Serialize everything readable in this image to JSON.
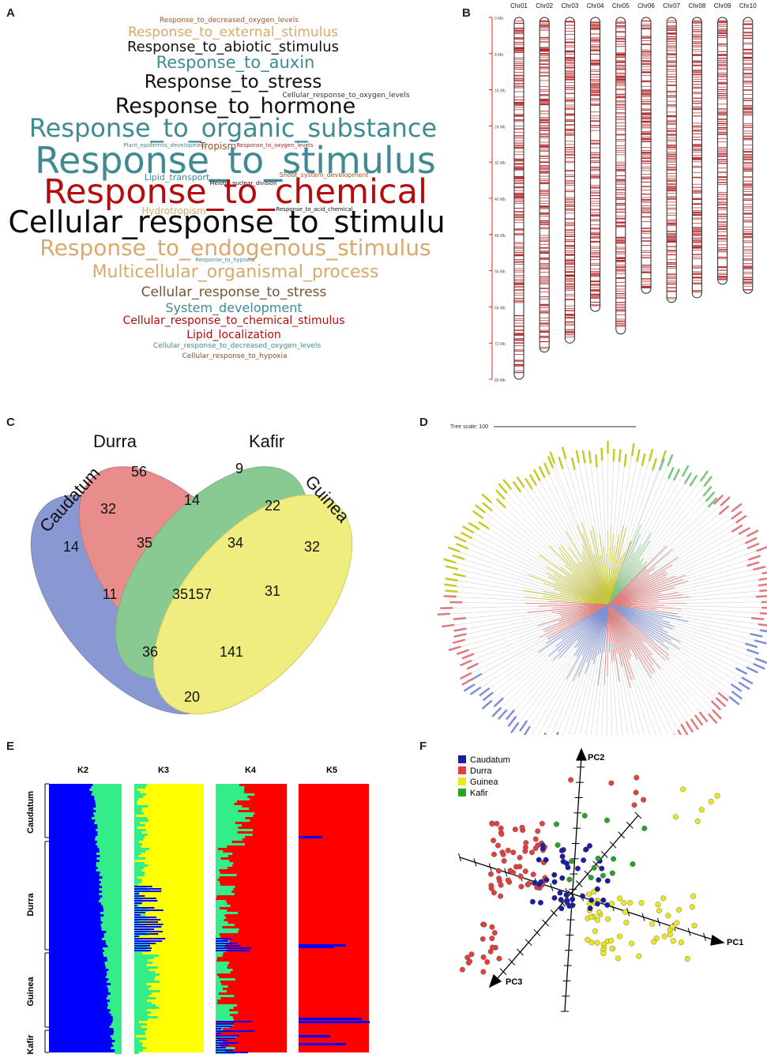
{
  "panels": {
    "a": "A",
    "b": "B",
    "c": "C",
    "d": "D",
    "e": "E",
    "f": "F"
  },
  "wordcloud": [
    {
      "text": "Response_to_decreased_oxygen_levels",
      "color": "#a0522d"
    },
    {
      "text": "Response_to_external_stimulus",
      "color": "#d9a86c"
    },
    {
      "text": "Response_to_abiotic_stimulus",
      "color": "#111111"
    },
    {
      "text": "Response_to_auxin",
      "color": "#3f8a93"
    },
    {
      "text": "Response_to_stress",
      "color": "#111111"
    },
    {
      "text": "Cellular_response_to_oxygen_levels",
      "color": "#333333"
    },
    {
      "text": "Response_to_hormone",
      "color": "#111111"
    },
    {
      "text": "Response_to_organic_substance",
      "color": "#3f8a93"
    },
    {
      "text": "Plant_epidermis_development",
      "color": "#3f8a93"
    },
    {
      "text": "Tropism",
      "color": "#a0522d"
    },
    {
      "text": "Response_to_oxygen_levels",
      "color": "#b22222"
    },
    {
      "text": "Response_to_stimulus",
      "color": "#3f8a93"
    },
    {
      "text": "Lipid_transport",
      "color": "#3f8a93"
    },
    {
      "text": "Shoot_system_development",
      "color": "#a0522d"
    },
    {
      "text": "Meiotic_nuclear_division",
      "color": "#111111"
    },
    {
      "text": "Response_to_chemical",
      "color": "#b30d0d"
    },
    {
      "text": "Cellular_response_to_stimulu",
      "color": "#0a0a0a"
    },
    {
      "text": "Hydrotropism",
      "color": "#d9a86c"
    },
    {
      "text": "Response_to_acid_chemical",
      "color": "#111111"
    },
    {
      "text": "Response_to_endogenous_stimulus",
      "color": "#d9a86c"
    },
    {
      "text": "Response_to_hypoxia",
      "color": "#3f8a93"
    },
    {
      "text": "Multicellular_organismal_process",
      "color": "#d9a86c"
    },
    {
      "text": "Cellular_response_to_stress",
      "color": "#7a5230"
    },
    {
      "text": "System_development",
      "color": "#3f8a93"
    },
    {
      "text": "Cellular_response_to_chemical_stimulus",
      "color": "#b30d0d"
    },
    {
      "text": "Lipid_localization",
      "color": "#b30d0d"
    },
    {
      "text": "Cellular_response_to_decreased_oxygen_levels",
      "color": "#3f8a93"
    },
    {
      "text": "Cellular_response_to_hypoxia",
      "color": "#7a5230"
    }
  ],
  "chromosomes": {
    "names": [
      "Chr01",
      "Chr02",
      "Chr03",
      "Chr04",
      "Chr05",
      "Chr06",
      "Chr07",
      "Chr08",
      "Chr09",
      "Chr10"
    ],
    "lengths_mb": [
      80,
      74,
      72,
      65,
      70,
      61,
      63,
      62,
      59,
      61
    ],
    "axis_ticks": [
      "0 Mb",
      "8 Mb",
      "16 Mb",
      "24 Mb",
      "32 Mb",
      "40 Mb",
      "48 Mb",
      "56 Mb",
      "64 Mb",
      "72 Mb",
      "80 Mb"
    ],
    "marker_color": "#b22222"
  },
  "venn": {
    "groups": [
      {
        "name": "Caudatum",
        "color": "#3b55b5"
      },
      {
        "name": "Durra",
        "color": "#d94040"
      },
      {
        "name": "Kafir",
        "color": "#3aa84a"
      },
      {
        "name": "Guinea",
        "color": "#e6e22c"
      }
    ],
    "counts": [
      "56",
      "9",
      "14",
      "32",
      "22",
      "32",
      "14",
      "35",
      "34",
      "11",
      "35157",
      "31",
      "36",
      "141",
      "20"
    ]
  },
  "tree": {
    "scale_label": "Tree scale: 100",
    "clade_colors": [
      "#c8c82a",
      "#e07a7a",
      "#7d8fd6",
      "#7cc37c"
    ]
  },
  "structure": {
    "columns": [
      "K2",
      "K3",
      "K4",
      "K5"
    ],
    "groups": [
      "Caudatum",
      "Durra",
      "Guinea",
      "Kafir"
    ],
    "colors": {
      "blue": "#0000ff",
      "green": "#33ee88",
      "yellow": "#ffff00",
      "red": "#ff0000"
    }
  },
  "pca": {
    "legend": [
      {
        "label": "Caudatum",
        "color": "#1c1c9e"
      },
      {
        "label": "Durra",
        "color": "#e04040"
      },
      {
        "label": "Guinea",
        "color": "#e8e81a"
      },
      {
        "label": "Kafir",
        "color": "#2aa22a"
      }
    ],
    "axes": [
      "PC1",
      "PC2",
      "PC3"
    ]
  }
}
